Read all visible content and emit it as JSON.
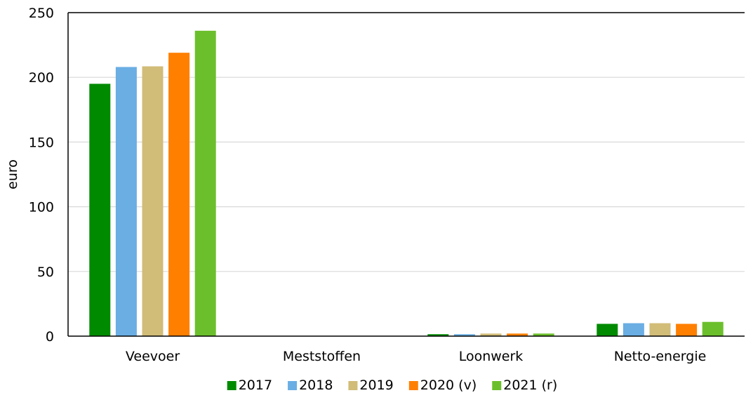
{
  "chart_data": {
    "type": "bar",
    "title": "",
    "xlabel": "",
    "ylabel": "euro",
    "ylim": [
      0,
      250
    ],
    "yticks": [
      0,
      50,
      100,
      150,
      200,
      250
    ],
    "grid": true,
    "legend_position": "bottom",
    "categories": [
      "Veevoer",
      "Meststoffen",
      "Loonwerk",
      "Netto-energie"
    ],
    "series": [
      {
        "name": "2017",
        "color": "#008a00",
        "values": [
          195,
          0,
          1.5,
          9.5
        ]
      },
      {
        "name": "2018",
        "color": "#6aaee4",
        "values": [
          208,
          0,
          1.5,
          10
        ]
      },
      {
        "name": "2019",
        "color": "#d1bc78",
        "values": [
          208.5,
          0,
          2,
          10
        ]
      },
      {
        "name": "2020 (v)",
        "color": "#ff7f00",
        "values": [
          219,
          0,
          2,
          9.5
        ]
      },
      {
        "name": "2021 (r)",
        "color": "#6bbf2c",
        "values": [
          236,
          0,
          2,
          11
        ]
      }
    ]
  }
}
